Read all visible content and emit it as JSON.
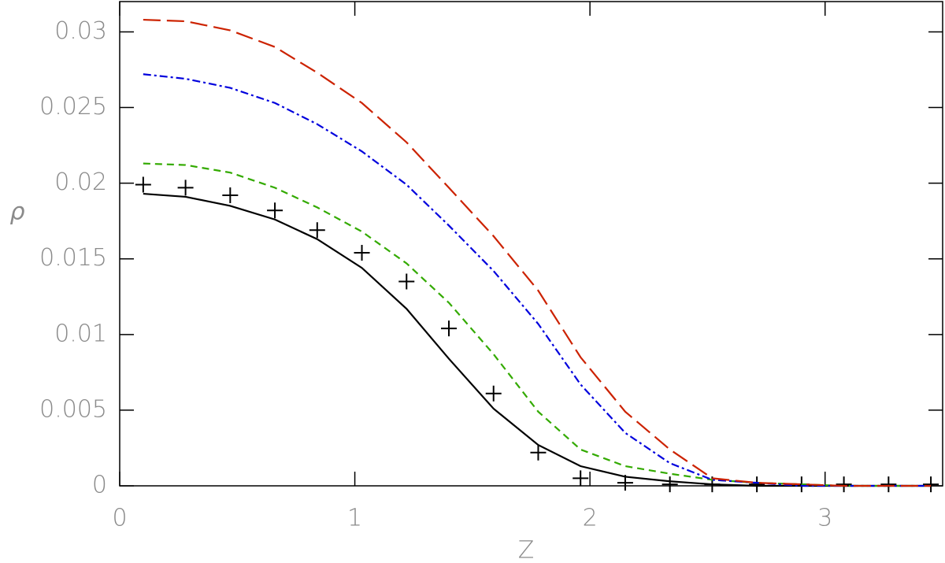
{
  "chart_data": {
    "type": "line",
    "xlabel": "Z",
    "ylabel": "ρ",
    "xlim": [
      0,
      3.5
    ],
    "ylim": [
      0,
      0.032
    ],
    "xticks": [
      0,
      1,
      2,
      3
    ],
    "yticks": [
      0,
      0.005,
      0.01,
      0.015,
      0.02,
      0.025,
      0.03
    ],
    "x": [
      0.1,
      0.28,
      0.47,
      0.66,
      0.84,
      1.03,
      1.22,
      1.4,
      1.59,
      1.78,
      1.96,
      2.15,
      2.34,
      2.52,
      2.71,
      2.9,
      3.08,
      3.27,
      3.45
    ],
    "series": [
      {
        "color": "#000000",
        "style": "markers",
        "values": [
          0.0199,
          0.0197,
          0.0192,
          0.0182,
          0.0169,
          0.0154,
          0.0135,
          0.0104,
          0.0061,
          0.0022,
          0.0005,
          0.0002,
          0.0001,
          0.0001,
          0.0001,
          0.0001,
          0.0001,
          0.0001,
          0.0001
        ]
      },
      {
        "color": "#000000",
        "style": "solid",
        "values": [
          0.0193,
          0.0191,
          0.0185,
          0.0176,
          0.0163,
          0.0144,
          0.0117,
          0.0084,
          0.0051,
          0.0027,
          0.0013,
          0.0006,
          0.0003,
          0.0001,
          0,
          0,
          0,
          0,
          0
        ]
      },
      {
        "color": "#33aa00",
        "style": "dashed",
        "values": [
          0.0213,
          0.0212,
          0.0207,
          0.0197,
          0.0184,
          0.0168,
          0.0147,
          0.0121,
          0.0087,
          0.0049,
          0.0024,
          0.0013,
          0.0008,
          0.0004,
          0.0002,
          0.0001,
          0,
          0,
          0
        ]
      },
      {
        "color": "#0000dd",
        "style": "dashdot",
        "values": [
          0.0272,
          0.0269,
          0.0263,
          0.0253,
          0.0239,
          0.0221,
          0.0199,
          0.0172,
          0.0142,
          0.0107,
          0.0067,
          0.0035,
          0.0015,
          0.0004,
          0.0002,
          0,
          0,
          0,
          0
        ]
      },
      {
        "color": "#cc2200",
        "style": "longdash",
        "values": [
          0.0308,
          0.0307,
          0.0301,
          0.029,
          0.0273,
          0.0253,
          0.0227,
          0.0197,
          0.0165,
          0.0129,
          0.0085,
          0.0049,
          0.0024,
          0.0005,
          0.0002,
          0.0001,
          0,
          0,
          0
        ]
      }
    ]
  }
}
